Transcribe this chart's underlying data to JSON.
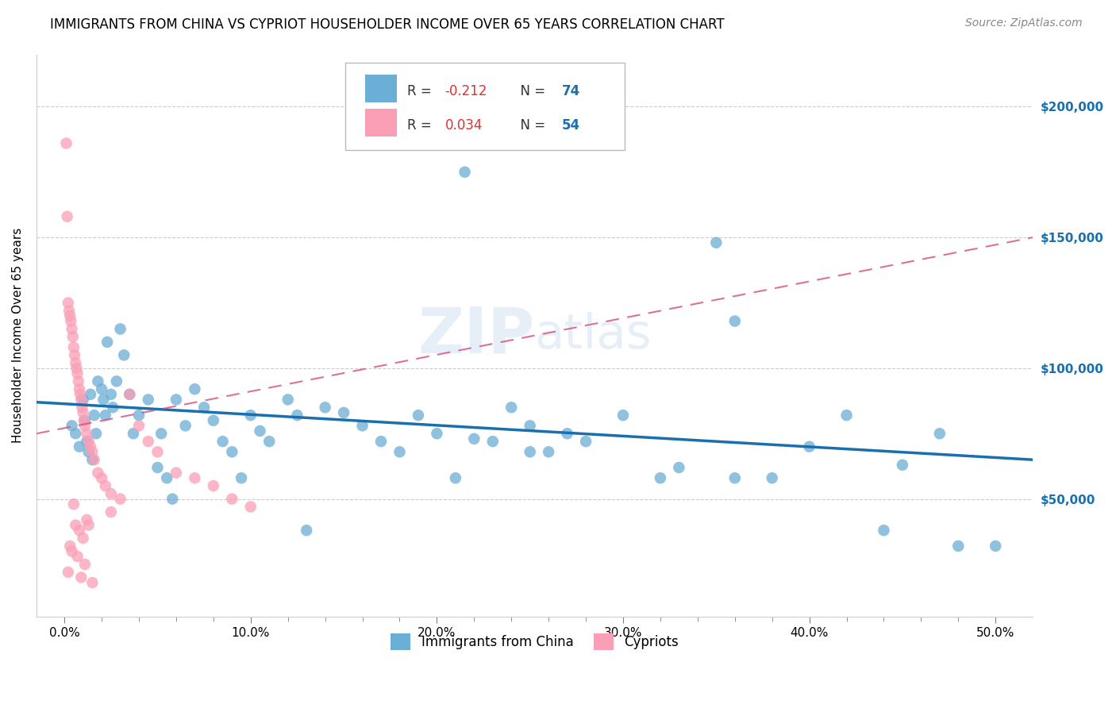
{
  "title": "IMMIGRANTS FROM CHINA VS CYPRIOT HOUSEHOLDER INCOME OVER 65 YEARS CORRELATION CHART",
  "source": "Source: ZipAtlas.com",
  "ylabel": "Householder Income Over 65 years",
  "xlabel_ticks": [
    "0.0%",
    "",
    "",
    "",
    "",
    "",
    "",
    "",
    "",
    "",
    "10.0%",
    "",
    "",
    "",
    "",
    "",
    "",
    "",
    "",
    "",
    "20.0%",
    "",
    "",
    "",
    "",
    "",
    "",
    "",
    "",
    "",
    "30.0%",
    "",
    "",
    "",
    "",
    "",
    "",
    "",
    "",
    "",
    "40.0%",
    "",
    "",
    "",
    "",
    "",
    "",
    "",
    "",
    "",
    "50.0%"
  ],
  "xlabel_vals": [
    0,
    1,
    2,
    3,
    4,
    5,
    6,
    7,
    8,
    9,
    10,
    11,
    12,
    13,
    14,
    15,
    16,
    17,
    18,
    19,
    20,
    21,
    22,
    23,
    24,
    25,
    26,
    27,
    28,
    29,
    30,
    31,
    32,
    33,
    34,
    35,
    36,
    37,
    38,
    39,
    40,
    41,
    42,
    43,
    44,
    45,
    46,
    47,
    48,
    49,
    50
  ],
  "ylabel_ticks": [
    50000,
    100000,
    150000,
    200000
  ],
  "ylabel_labels": [
    "$50,000",
    "$100,000",
    "$150,000",
    "$200,000"
  ],
  "xlim": [
    -1.5,
    52.0
  ],
  "ylim": [
    5000,
    220000
  ],
  "blue_R": -0.212,
  "blue_N": 74,
  "pink_R": 0.034,
  "pink_N": 54,
  "blue_color": "#6baed6",
  "pink_color": "#fa9fb5",
  "blue_line_color": "#1a6faf",
  "pink_line_color": "#d44e7e",
  "watermark": "ZIPatlas",
  "blue_scatter_x": [
    0.4,
    0.6,
    0.8,
    1.0,
    1.1,
    1.2,
    1.3,
    1.4,
    1.5,
    1.6,
    1.7,
    1.8,
    2.0,
    2.1,
    2.2,
    2.3,
    2.5,
    2.6,
    2.8,
    3.0,
    3.2,
    3.5,
    3.7,
    4.0,
    4.5,
    5.0,
    5.2,
    5.5,
    5.8,
    6.0,
    6.5,
    7.0,
    7.5,
    8.0,
    8.5,
    9.0,
    9.5,
    10.0,
    10.5,
    11.0,
    12.0,
    12.5,
    13.0,
    14.0,
    15.0,
    16.0,
    17.0,
    18.0,
    19.0,
    20.0,
    21.0,
    22.0,
    23.0,
    24.0,
    25.0,
    26.0,
    27.0,
    28.0,
    30.0,
    32.0,
    33.0,
    35.0,
    36.0,
    38.0,
    40.0,
    42.0,
    44.0,
    45.0,
    47.0,
    48.0,
    50.0,
    21.5,
    36.0,
    25.0
  ],
  "blue_scatter_y": [
    78000,
    75000,
    70000,
    88000,
    80000,
    72000,
    68000,
    90000,
    65000,
    82000,
    75000,
    95000,
    92000,
    88000,
    82000,
    110000,
    90000,
    85000,
    95000,
    115000,
    105000,
    90000,
    75000,
    82000,
    88000,
    62000,
    75000,
    58000,
    50000,
    88000,
    78000,
    92000,
    85000,
    80000,
    72000,
    68000,
    58000,
    82000,
    76000,
    72000,
    88000,
    82000,
    38000,
    85000,
    83000,
    78000,
    72000,
    68000,
    82000,
    75000,
    58000,
    73000,
    72000,
    85000,
    78000,
    68000,
    75000,
    72000,
    82000,
    58000,
    62000,
    148000,
    118000,
    58000,
    70000,
    82000,
    38000,
    63000,
    75000,
    32000,
    32000,
    175000,
    58000,
    68000
  ],
  "pink_scatter_x": [
    0.1,
    0.15,
    0.2,
    0.25,
    0.3,
    0.35,
    0.4,
    0.45,
    0.5,
    0.55,
    0.6,
    0.65,
    0.7,
    0.75,
    0.8,
    0.85,
    0.9,
    0.95,
    1.0,
    1.05,
    1.1,
    1.2,
    1.3,
    1.4,
    1.5,
    1.6,
    1.8,
    2.0,
    2.2,
    2.5,
    3.0,
    3.5,
    4.0,
    4.5,
    5.0,
    6.0,
    7.0,
    8.0,
    9.0,
    10.0,
    1.2,
    1.3,
    0.5,
    0.6,
    0.8,
    1.0,
    0.3,
    0.4,
    0.7,
    1.1,
    0.2,
    0.9,
    1.5,
    2.5
  ],
  "pink_scatter_y": [
    186000,
    158000,
    125000,
    122000,
    120000,
    118000,
    115000,
    112000,
    108000,
    105000,
    102000,
    100000,
    98000,
    95000,
    92000,
    90000,
    88000,
    85000,
    83000,
    80000,
    78000,
    75000,
    72000,
    70000,
    68000,
    65000,
    60000,
    58000,
    55000,
    52000,
    50000,
    90000,
    78000,
    72000,
    68000,
    60000,
    58000,
    55000,
    50000,
    47000,
    42000,
    40000,
    48000,
    40000,
    38000,
    35000,
    32000,
    30000,
    28000,
    25000,
    22000,
    20000,
    18000,
    45000
  ]
}
